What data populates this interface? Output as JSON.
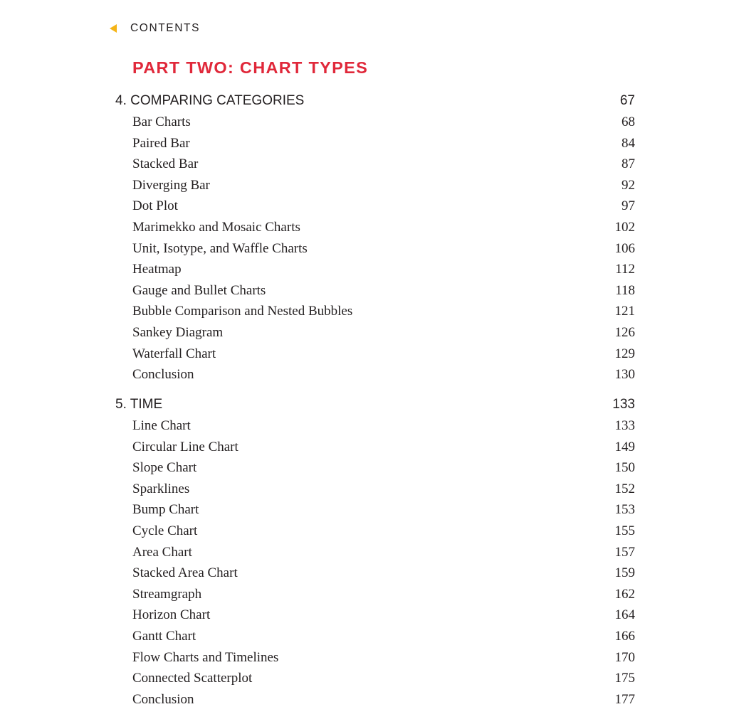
{
  "nav": {
    "back_label": "CONTENTS",
    "arrow_color": "#f5b417"
  },
  "part_title": "PART TWO: CHART TYPES",
  "part_title_color": "#e0283a",
  "sections": [
    {
      "title": "4. COMPARING CATEGORIES",
      "page": "67",
      "items": [
        {
          "label": "Bar Charts",
          "page": "68"
        },
        {
          "label": "Paired Bar",
          "page": "84"
        },
        {
          "label": "Stacked Bar",
          "page": "87"
        },
        {
          "label": "Diverging Bar",
          "page": "92"
        },
        {
          "label": "Dot Plot",
          "page": "97"
        },
        {
          "label": "Marimekko and Mosaic Charts",
          "page": "102"
        },
        {
          "label": "Unit, Isotype, and Waffle Charts",
          "page": "106"
        },
        {
          "label": "Heatmap",
          "page": "112"
        },
        {
          "label": "Gauge and Bullet Charts",
          "page": "118"
        },
        {
          "label": "Bubble Comparison and Nested Bubbles",
          "page": "121"
        },
        {
          "label": "Sankey Diagram",
          "page": "126"
        },
        {
          "label": "Waterfall Chart",
          "page": "129"
        },
        {
          "label": "Conclusion",
          "page": "130"
        }
      ]
    },
    {
      "title": "5. TIME",
      "page": "133",
      "items": [
        {
          "label": "Line Chart",
          "page": "133"
        },
        {
          "label": "Circular Line Chart",
          "page": "149"
        },
        {
          "label": "Slope Chart",
          "page": "150"
        },
        {
          "label": "Sparklines",
          "page": "152"
        },
        {
          "label": "Bump Chart",
          "page": "153"
        },
        {
          "label": "Cycle Chart",
          "page": "155"
        },
        {
          "label": "Area Chart",
          "page": "157"
        },
        {
          "label": "Stacked Area Chart",
          "page": "159"
        },
        {
          "label": "Streamgraph",
          "page": "162"
        },
        {
          "label": "Horizon Chart",
          "page": "164"
        },
        {
          "label": "Gantt Chart",
          "page": "166"
        },
        {
          "label": "Flow Charts and Timelines",
          "page": "170"
        },
        {
          "label": "Connected Scatterplot",
          "page": "175"
        },
        {
          "label": "Conclusion",
          "page": "177"
        }
      ]
    }
  ]
}
